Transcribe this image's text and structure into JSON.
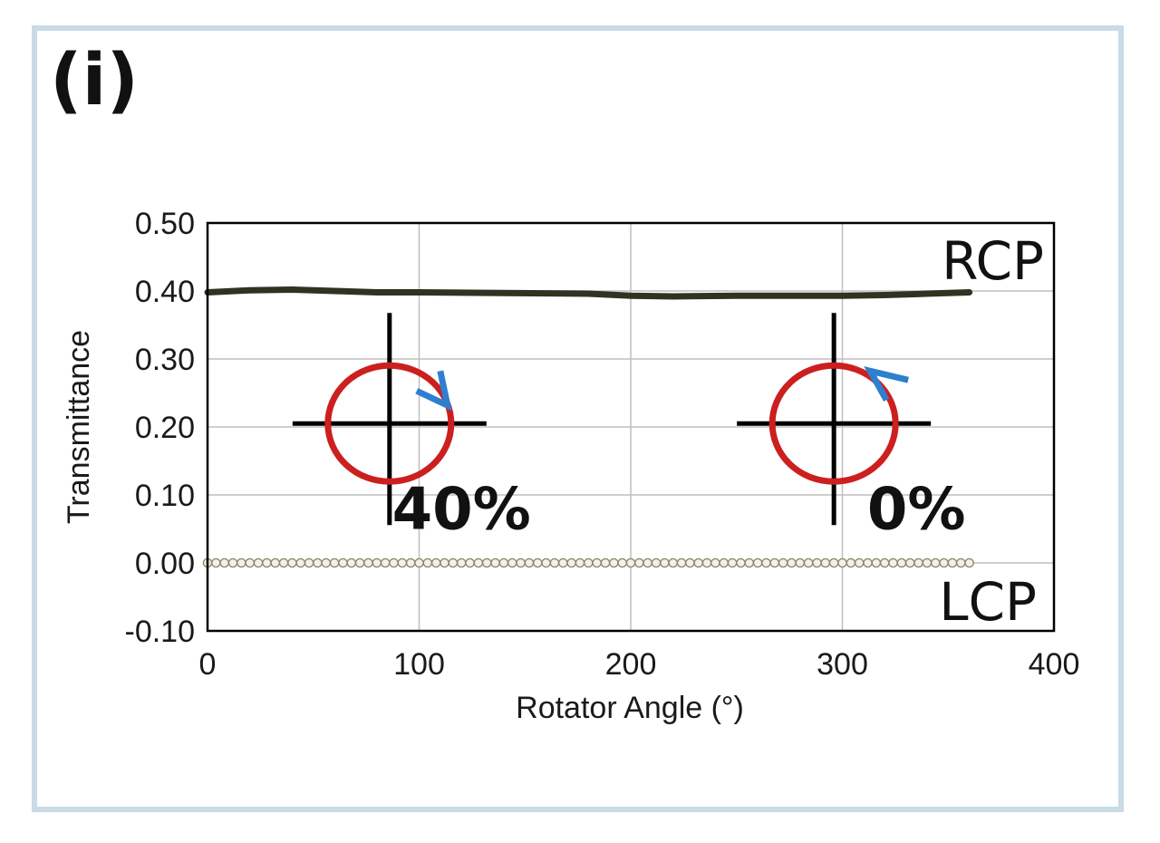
{
  "panel_label": "(i)",
  "colors": {
    "rcp_line": "#2f3322",
    "lcp_marker_fill": "#f4f2e6",
    "lcp_marker_stroke": "#8c8a72",
    "circle": "#cc1f1f",
    "arrow": "#2f7fd0",
    "crosshair": "#000000",
    "grid": "#bfbfbf",
    "frame": "#c8dbe6"
  },
  "chart_data": {
    "type": "line",
    "xlabel": "Rotator Angle (°)",
    "ylabel": "Transmittance",
    "xlim": [
      0,
      400
    ],
    "ylim": [
      -0.1,
      0.5
    ],
    "x_ticks": [
      "0",
      "100",
      "200",
      "300",
      "400"
    ],
    "y_ticks": [
      "-0.10",
      "0.00",
      "0.10",
      "0.20",
      "0.30",
      "0.40",
      "0.50"
    ],
    "grid": true,
    "series": [
      {
        "name": "RCP",
        "marker": "none",
        "points": [
          [
            0,
            0.398
          ],
          [
            20,
            0.401
          ],
          [
            40,
            0.402
          ],
          [
            60,
            0.4
          ],
          [
            80,
            0.398
          ],
          [
            100,
            0.398
          ],
          [
            140,
            0.397
          ],
          [
            180,
            0.396
          ],
          [
            200,
            0.393
          ],
          [
            220,
            0.392
          ],
          [
            250,
            0.393
          ],
          [
            280,
            0.393
          ],
          [
            300,
            0.393
          ],
          [
            320,
            0.394
          ],
          [
            340,
            0.396
          ],
          [
            360,
            0.398
          ]
        ]
      },
      {
        "name": "LCP",
        "marker": "circle",
        "x_start": 0,
        "x_end": 360,
        "x_step": 4,
        "y": 0.0
      }
    ],
    "annotations": [
      {
        "text": "40%",
        "x": 120,
        "y": 0.09
      },
      {
        "text": "0%",
        "x": 335,
        "y": 0.09
      }
    ],
    "polarization_icons": [
      {
        "name": "right-handed",
        "cx": 86,
        "cy": 0.205,
        "arrow_direction": "clockwise"
      },
      {
        "name": "left-handed",
        "cx": 296,
        "cy": 0.205,
        "arrow_direction": "counterclockwise"
      }
    ]
  }
}
